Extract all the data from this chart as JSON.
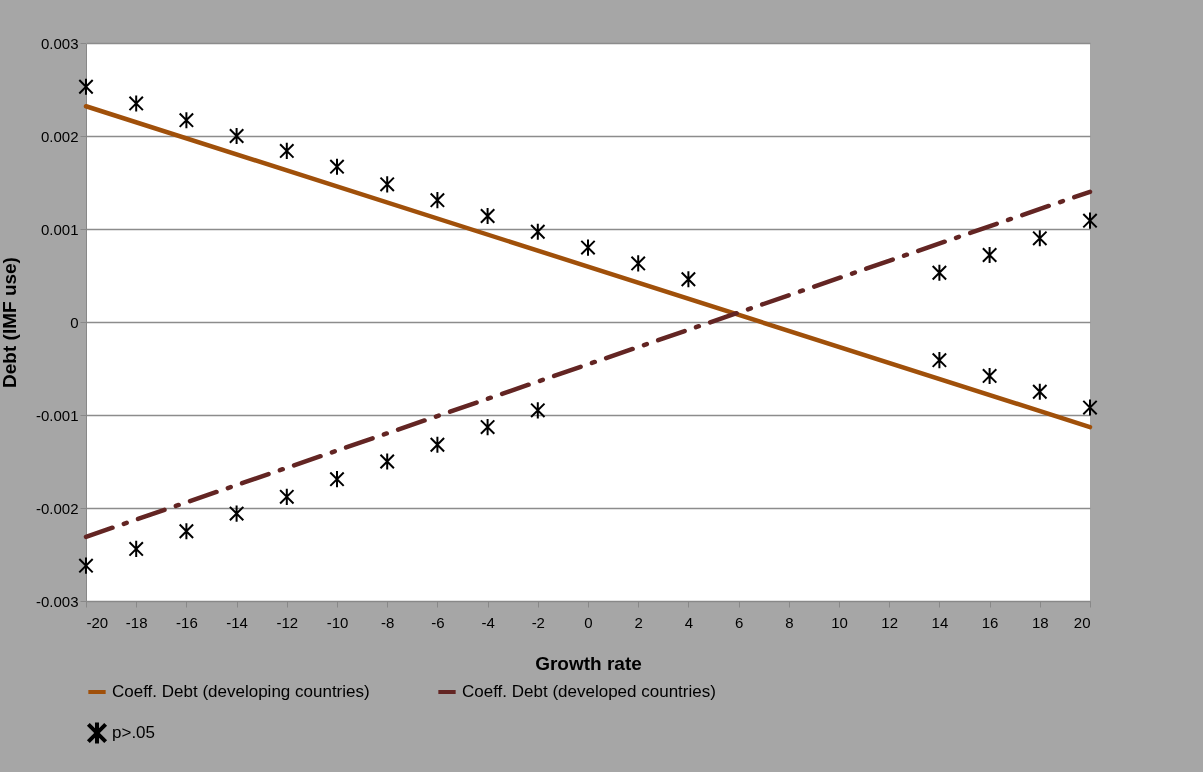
{
  "chart_data": {
    "type": "line",
    "xlabel": "Growth rate",
    "ylabel": "Debt (IMF use)",
    "xlim": [
      -20,
      20
    ],
    "xticks": [
      -20,
      -18,
      -16,
      -14,
      -12,
      -10,
      -8,
      -6,
      -4,
      -2,
      0,
      2,
      4,
      6,
      8,
      10,
      12,
      14,
      16,
      18,
      20
    ],
    "ylim": [
      -0.003,
      0.003
    ],
    "yticks": [
      -0.003,
      -0.002,
      -0.001,
      0,
      0.001,
      0.002,
      0.003
    ],
    "grid": "y",
    "legend": "bottom",
    "series": [
      {
        "name": "Coeff. Debt (developing countries)",
        "color": "#a0500a",
        "line_style": "solid",
        "x": [
          -20,
          20
        ],
        "values": [
          0.00232,
          -0.00113
        ]
      },
      {
        "name": "Coeff. Debt (developed countries)",
        "color": "#632523",
        "line_style": "dashed",
        "x": [
          -20,
          20
        ],
        "values": [
          -0.00231,
          0.0014
        ]
      },
      {
        "name": "p>.05",
        "type": "scatter",
        "marker": "cross",
        "color": "#000000",
        "x": [
          -20,
          -18,
          -16,
          -14,
          -12,
          -10,
          -8,
          -6,
          -4,
          -2,
          0,
          2,
          4,
          6,
          8,
          10,
          12,
          14,
          16,
          18,
          20
        ],
        "values": [
          0.00253,
          0.00235,
          0.00217,
          0.002,
          0.00184,
          0.00167,
          0.00148,
          0.00131,
          0.00114,
          0.00097,
          0.0008,
          0.00063,
          0.00046,
          null,
          null,
          null,
          null,
          0.00053,
          0.00072,
          0.0009,
          0.00109
        ]
      },
      {
        "type": "scatter",
        "marker": "cross",
        "color": "#000000",
        "x": [
          -20,
          -18,
          -16,
          -14,
          -12,
          -10,
          -8,
          -6,
          -4,
          -2,
          0,
          2,
          4,
          6,
          8,
          10,
          12,
          14,
          16,
          18,
          20
        ],
        "values": [
          -0.00262,
          -0.00244,
          -0.00225,
          -0.00206,
          -0.00188,
          -0.00169,
          -0.0015,
          -0.00132,
          -0.00113,
          -0.00095,
          null,
          null,
          null,
          null,
          null,
          null,
          null,
          -0.00041,
          -0.00058,
          -0.00075,
          -0.00092
        ]
      }
    ]
  }
}
